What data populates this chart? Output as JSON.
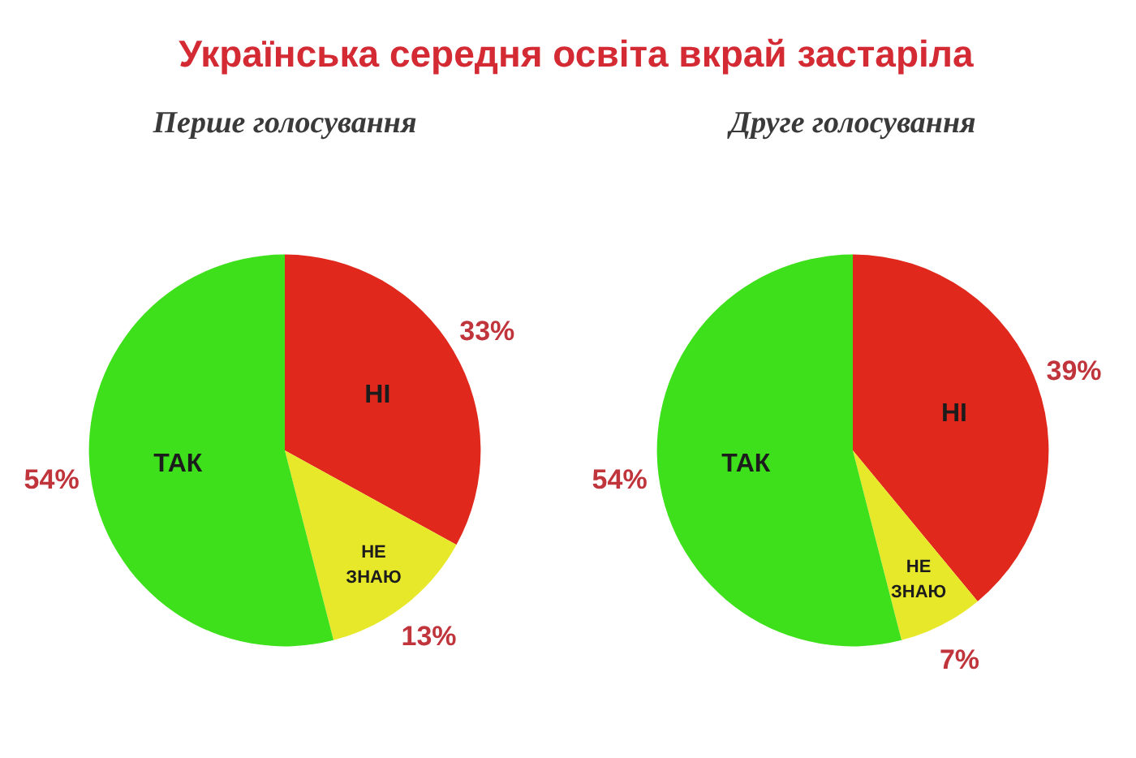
{
  "chart_data": [
    {
      "type": "pie",
      "title": "Українська середня освіта вкрай застаріла",
      "subtitle": "Перше голосування",
      "categories": [
        "НІ",
        "НЕ ЗНАЮ",
        "ТАК"
      ],
      "values": [
        33,
        13,
        54
      ],
      "colors": [
        "#e0281c",
        "#e8e82a",
        "#3ee01c"
      ],
      "value_labels": [
        "33%",
        "13%",
        "54%"
      ]
    },
    {
      "type": "pie",
      "subtitle": "Друге голосування",
      "categories": [
        "НІ",
        "НЕ ЗНАЮ",
        "ТАК"
      ],
      "values": [
        39,
        7,
        54
      ],
      "colors": [
        "#e0281c",
        "#e8e82a",
        "#3ee01c"
      ],
      "value_labels": [
        "39%",
        "7%",
        "54%"
      ]
    }
  ]
}
